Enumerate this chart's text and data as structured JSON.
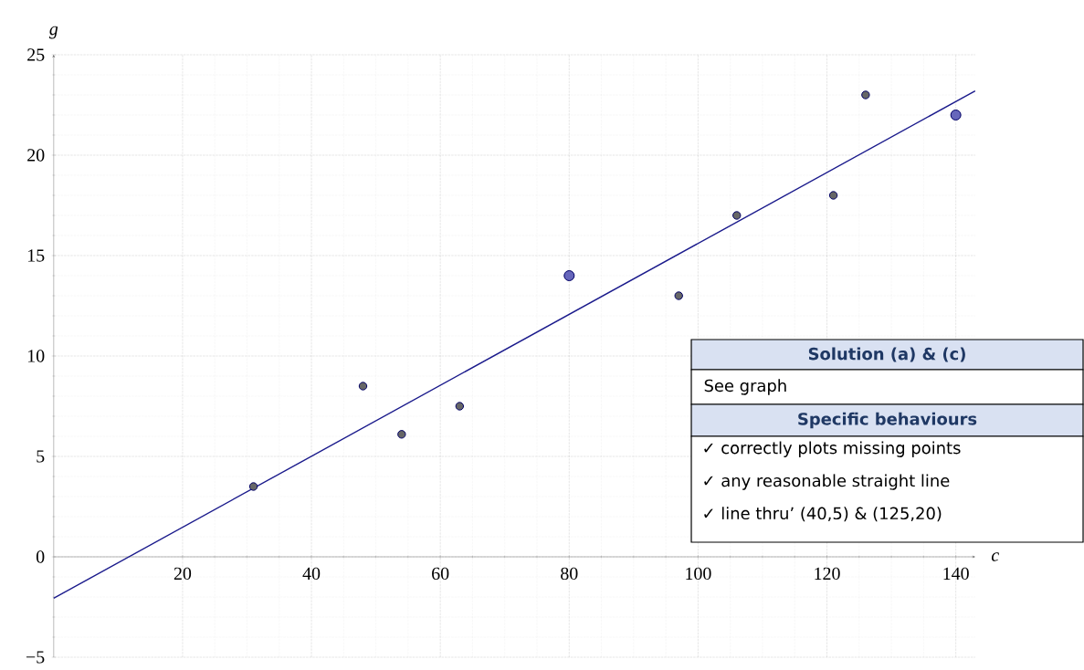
{
  "chart_data": {
    "type": "scatter",
    "xlabel": "c",
    "ylabel": "g",
    "xlim": [
      0,
      143
    ],
    "ylim": [
      -5,
      25
    ],
    "xticks": [
      20,
      40,
      60,
      80,
      100,
      120,
      140
    ],
    "yticks": [
      {
        "value": -5,
        "label": "−5"
      },
      0,
      5,
      10,
      15,
      20,
      25
    ],
    "grid": true,
    "series": [
      {
        "type": "scatter",
        "color": "#666666",
        "x": [
          31,
          48,
          54,
          63,
          97,
          106,
          121,
          126
        ],
        "values": [
          3.5,
          8.5,
          6.1,
          7.5,
          13,
          17,
          18,
          23
        ]
      },
      {
        "type": "scatter",
        "color": "#6666bb",
        "x": [
          80,
          140
        ],
        "values": [
          14,
          22
        ]
      },
      {
        "type": "line",
        "color": "#1a1a8c",
        "x": [
          0,
          143
        ],
        "values": [
          -2.06,
          23.2
        ]
      }
    ],
    "annotations": [
      "Solution (a) & (c)",
      "See graph",
      "Specific behaviours",
      "✓ correctly plots missing points",
      "✓ any reasonable straight line",
      "✓ line thru’ (40,5) & (125,20)"
    ]
  }
}
